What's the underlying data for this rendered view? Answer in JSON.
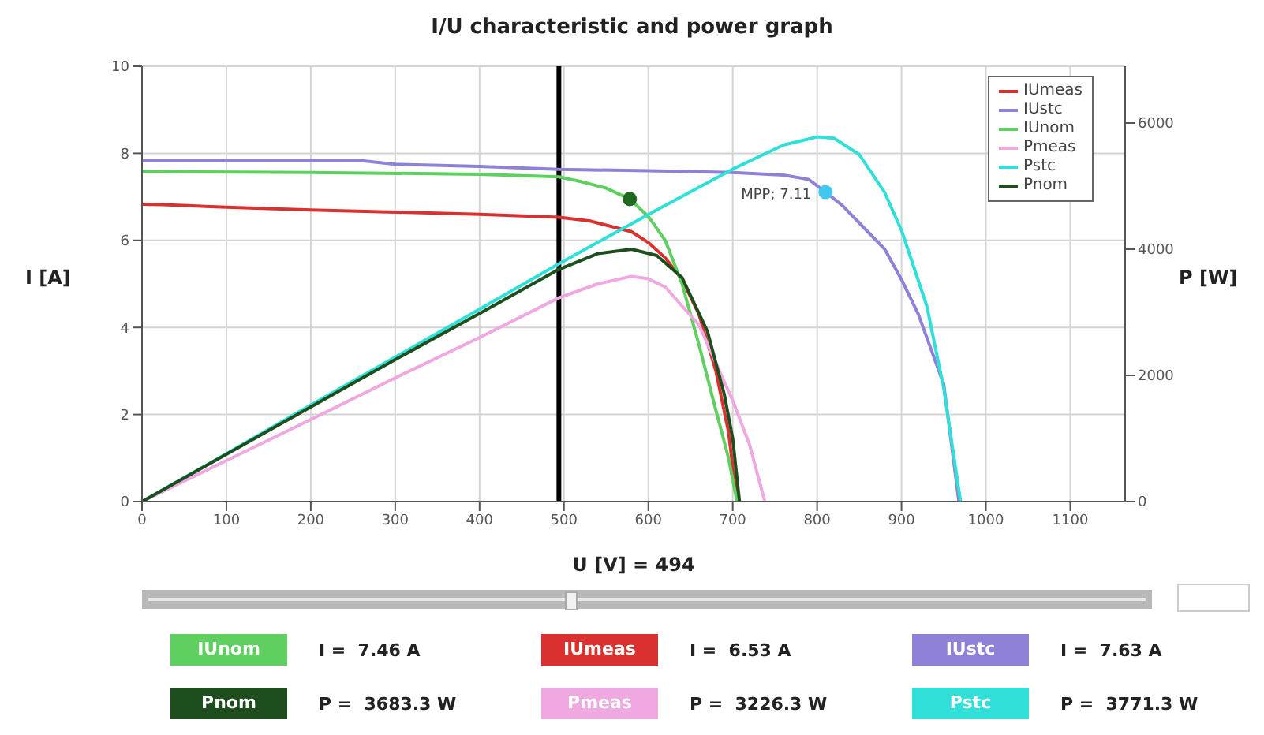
{
  "chart_data": {
    "type": "line",
    "title": "I/U characteristic and power graph",
    "xlabel": "U [V] = 494",
    "ylabel": "I [A]",
    "y2label": "P [W]",
    "xlim": [
      0,
      1165
    ],
    "xticks": [
      0,
      100,
      200,
      300,
      400,
      500,
      600,
      700,
      800,
      900,
      1000,
      1100
    ],
    "ylim": [
      0,
      10
    ],
    "yticks": [
      0,
      2,
      4,
      6,
      8,
      10
    ],
    "y2lim": [
      0,
      6900
    ],
    "y2ticks": [
      0,
      2000,
      4000,
      6000
    ],
    "grid": true,
    "legend": "top right",
    "marker": "none",
    "ref_lines": [
      {
        "axis": "x",
        "value": 494,
        "color": "#000000"
      }
    ],
    "series": [
      {
        "name": "IUmeas",
        "color": "#d93030",
        "x": [
          0,
          25,
          100,
          200,
          300,
          400,
          494,
          530,
          560,
          580,
          600,
          620,
          640,
          660,
          680,
          695,
          705
        ],
        "values": [
          6.83,
          6.82,
          6.76,
          6.7,
          6.65,
          6.6,
          6.53,
          6.45,
          6.3,
          6.2,
          5.95,
          5.6,
          5.1,
          4.3,
          3.0,
          1.6,
          0
        ]
      },
      {
        "name": "IUstc",
        "color": "#8f80d8",
        "x": [
          0,
          100,
          260,
          300,
          400,
          494,
          600,
          700,
          760,
          790,
          810,
          830,
          860,
          880,
          900,
          920,
          950,
          968
        ],
        "values": [
          7.83,
          7.83,
          7.83,
          7.75,
          7.7,
          7.63,
          7.6,
          7.56,
          7.5,
          7.4,
          7.11,
          6.8,
          6.2,
          5.8,
          5.1,
          4.3,
          2.7,
          0
        ]
      },
      {
        "name": "IUnom",
        "color": "#5fcf5f",
        "x": [
          0,
          200,
          400,
          494,
          520,
          550,
          578,
          600,
          620,
          640,
          660,
          680,
          695,
          705
        ],
        "values": [
          7.58,
          7.56,
          7.52,
          7.46,
          7.35,
          7.2,
          6.95,
          6.55,
          6.0,
          5.0,
          3.6,
          2.1,
          1.0,
          0
        ]
      },
      {
        "name": "Pmeas",
        "color": "#f0a8e0",
        "axis": "y2",
        "x": [
          0,
          100,
          200,
          300,
          400,
          494,
          540,
          580,
          600,
          620,
          660,
          700,
          720,
          738
        ],
        "values": [
          0,
          650,
          1300,
          1960,
          2600,
          3230,
          3450,
          3570,
          3530,
          3400,
          2800,
          1600,
          900,
          0
        ]
      },
      {
        "name": "Pstc",
        "color": "#30e0d8",
        "axis": "y2",
        "x": [
          0,
          100,
          200,
          300,
          400,
          494,
          600,
          700,
          760,
          800,
          820,
          850,
          880,
          900,
          930,
          950,
          970
        ],
        "values": [
          0,
          760,
          1530,
          2290,
          3050,
          3770,
          4550,
          5270,
          5650,
          5780,
          5760,
          5500,
          4900,
          4300,
          3100,
          1800,
          0
        ]
      },
      {
        "name": "Pnom",
        "color": "#1e4d1e",
        "axis": "y2",
        "x": [
          0,
          100,
          200,
          300,
          400,
          494,
          540,
          580,
          610,
          640,
          670,
          690,
          700,
          708
        ],
        "values": [
          0,
          750,
          1500,
          2250,
          2980,
          3680,
          3930,
          4000,
          3900,
          3550,
          2700,
          1700,
          1000,
          0
        ]
      },
      {
        "type": "scatter",
        "color": "#1e6b1e",
        "marker": "circle",
        "x": [
          578
        ],
        "values": [
          6.95
        ]
      },
      {
        "type": "scatter",
        "color": "#40c8f0",
        "marker": "circle",
        "x": [
          810
        ],
        "values": [
          7.11
        ]
      }
    ],
    "annotations": [
      {
        "text": "MPP; 7.11",
        "x": 810,
        "y": 7.11
      },
      "IUnom",
      "I =  7.46 A",
      "IUmeas",
      "I =  6.53 A",
      "IUstc",
      "I =  7.63 A",
      "Pnom",
      "P =  3683.3 W",
      "Pmeas",
      "P =  3226.3 W",
      "Pstc",
      "P =  3771.3 W"
    ]
  }
}
